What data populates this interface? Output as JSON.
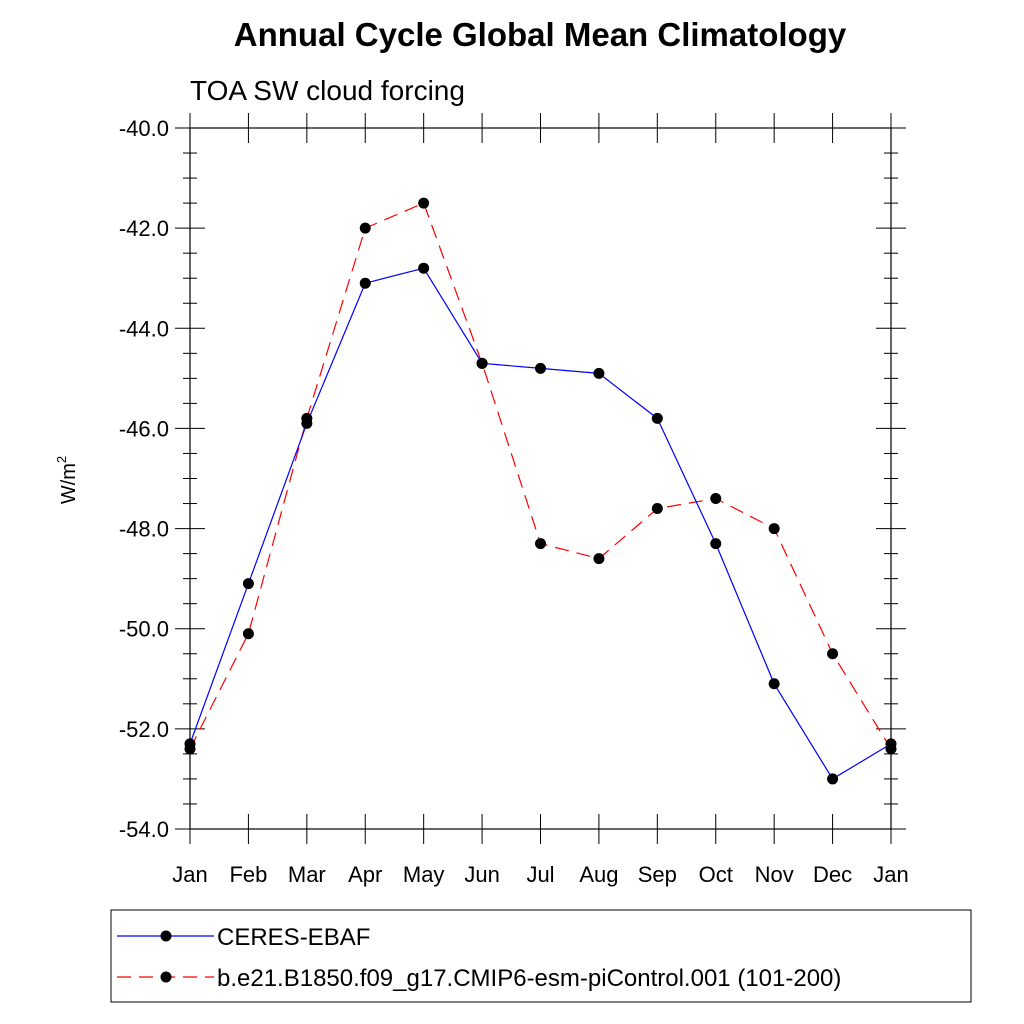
{
  "chart_data": {
    "type": "line",
    "title": "Annual Cycle Global Mean Climatology",
    "subtitle": "TOA SW cloud forcing",
    "ylabel_base": "W/m",
    "ylabel_sup": "2",
    "xlabel": "",
    "categories": [
      "Jan",
      "Feb",
      "Mar",
      "Apr",
      "May",
      "Jun",
      "Jul",
      "Aug",
      "Sep",
      "Oct",
      "Nov",
      "Dec",
      "Jan"
    ],
    "ylim": [
      -54.0,
      -40.0
    ],
    "yticks": [
      -40.0,
      -42.0,
      -44.0,
      -46.0,
      -48.0,
      -50.0,
      -52.0,
      -54.0
    ],
    "ytick_labels": [
      "-40.0",
      "-42.0",
      "-44.0",
      "-46.0",
      "-48.0",
      "-50.0",
      "-52.0",
      "-54.0"
    ],
    "legend_position": "bottom",
    "series": [
      {
        "name": "CERES-EBAF",
        "color": "#0000ff",
        "dash": "solid",
        "values": [
          -52.3,
          -49.1,
          -45.9,
          -43.1,
          -42.8,
          -44.7,
          -44.8,
          -44.9,
          -45.8,
          -48.3,
          -51.1,
          -53.0,
          -52.3
        ]
      },
      {
        "name": "b.e21.B1850.f09_g17.CMIP6-esm-piControl.001 (101-200)",
        "color": "#ff0000",
        "dash": "dashed",
        "values": [
          -52.4,
          -50.1,
          -45.8,
          -42.0,
          -41.5,
          -44.7,
          -48.3,
          -48.6,
          -47.6,
          -47.4,
          -48.0,
          -50.5,
          -52.4
        ]
      }
    ]
  }
}
